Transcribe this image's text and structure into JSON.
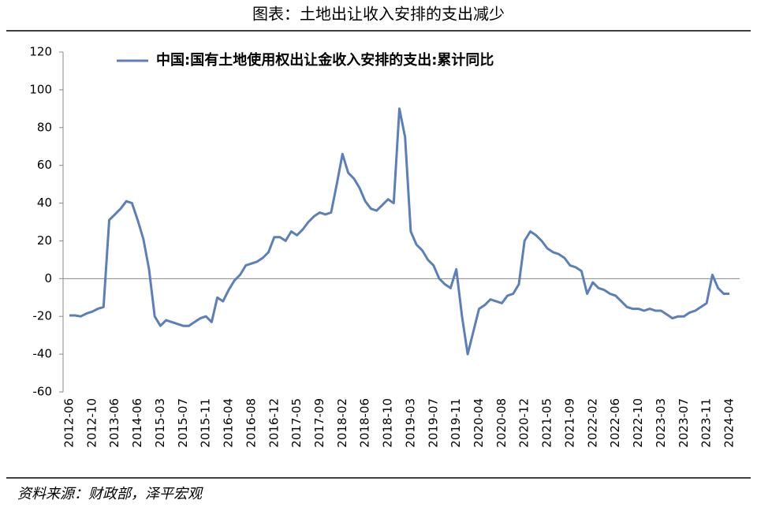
{
  "chart_data": {
    "type": "line",
    "title": "图表：土地出让收入安排的支出减少",
    "source": "资料来源：财政部，泽平宏观",
    "categories": [
      "2012-06",
      null,
      null,
      null,
      "2012-10",
      null,
      null,
      null,
      "2013-06",
      null,
      null,
      null,
      "2014-06",
      null,
      null,
      null,
      "2015-03",
      null,
      null,
      null,
      "2015-07",
      null,
      null,
      null,
      "2015-11",
      null,
      null,
      null,
      "2016-04",
      null,
      null,
      null,
      "2016-08",
      null,
      null,
      null,
      "2016-12",
      null,
      null,
      null,
      "2017-05",
      null,
      null,
      null,
      "2017-09",
      null,
      null,
      null,
      "2018-02",
      null,
      null,
      null,
      "2018-06",
      null,
      null,
      null,
      "2018-10",
      null,
      null,
      null,
      "2019-03",
      null,
      null,
      null,
      "2019-07",
      null,
      null,
      null,
      "2019-11",
      null,
      null,
      null,
      "2020-04",
      null,
      null,
      null,
      "2020-08",
      null,
      null,
      null,
      "2020-12",
      null,
      null,
      null,
      "2021-05",
      null,
      null,
      null,
      "2021-09",
      null,
      null,
      null,
      "2022-02",
      null,
      null,
      null,
      "2022-06",
      null,
      null,
      null,
      "2022-10",
      null,
      null,
      null,
      "2023-03",
      null,
      null,
      null,
      "2023-07",
      null,
      null,
      null,
      "2023-11",
      null,
      null,
      null,
      "2024-04"
    ],
    "series": [
      {
        "name": "中国:国有土地使用权出让金收入安排的支出:累计同比",
        "color": "#5b7fb8",
        "values": [
          -19.5,
          -19.5,
          -20,
          -18.5,
          -17.5,
          -16,
          -15,
          31,
          34,
          37,
          41,
          40,
          31,
          21,
          5,
          -20,
          -25,
          -22,
          -23,
          -24,
          -25,
          -25,
          -23,
          -21,
          -20,
          -23,
          -10,
          -12,
          -6,
          -1,
          2,
          7,
          8,
          9,
          11,
          14,
          22,
          22,
          20,
          25,
          23,
          26,
          30,
          33,
          35,
          34,
          35,
          50,
          66,
          56,
          53,
          48,
          41,
          37,
          36,
          39,
          42,
          40,
          90,
          75,
          25,
          18,
          15,
          10,
          7,
          0,
          -3,
          -5,
          5,
          -20,
          -40,
          -28,
          -16,
          -14,
          -11,
          -12,
          -13,
          -9,
          -8,
          -3,
          20,
          25,
          23,
          20,
          16,
          14,
          13,
          11,
          7,
          6,
          4,
          -8,
          -2,
          -5,
          -6,
          -8,
          -9,
          -12,
          -15,
          -16,
          -16,
          -17,
          -16,
          -17,
          -17,
          -19,
          -21,
          -20,
          -20,
          -18,
          -17,
          -15,
          -13,
          2,
          -5,
          -8,
          -8
        ]
      }
    ],
    "ylim": [
      -60,
      120
    ],
    "yticks": [
      -60,
      -40,
      -20,
      0,
      20,
      40,
      60,
      80,
      100,
      120
    ],
    "legend": "top"
  }
}
